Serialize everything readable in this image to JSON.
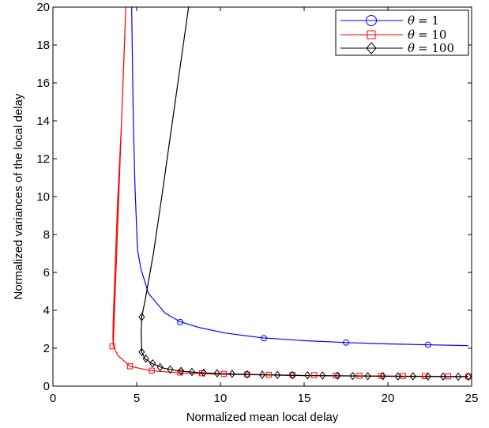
{
  "chart_data": {
    "type": "line",
    "title": "",
    "xlabel": "Normalized mean local delay",
    "ylabel": "Normalized variances of the local delay",
    "xlim": [
      0,
      25
    ],
    "ylim": [
      0,
      20
    ],
    "xticks": [
      "0",
      "5",
      "10",
      "15",
      "20",
      "25"
    ],
    "yticks": [
      "0",
      "2",
      "4",
      "6",
      "8",
      "10",
      "12",
      "14",
      "16",
      "18",
      "20"
    ],
    "grid": false,
    "legend_position": "top-right",
    "series": [
      {
        "name": "θ = 1",
        "legend_symbol": "θ",
        "legend_value": "= 1",
        "color": "#0000ff",
        "marker": "circle",
        "points": [
          [
            4.7,
            20
          ],
          [
            4.8,
            14
          ],
          [
            4.9,
            10.5
          ],
          [
            5.05,
            7.2
          ],
          [
            5.25,
            6.2
          ],
          [
            5.7,
            4.9
          ],
          [
            6.7,
            3.85
          ],
          [
            7.6,
            3.4
          ],
          [
            8.7,
            3.1
          ],
          [
            10.3,
            2.8
          ],
          [
            12.5,
            2.55
          ],
          [
            15,
            2.4
          ],
          [
            17.5,
            2.3
          ],
          [
            20,
            2.23
          ],
          [
            22.5,
            2.18
          ],
          [
            24.8,
            2.14
          ]
        ],
        "marker_points": [
          [
            7.6,
            3.38
          ],
          [
            12.6,
            2.53
          ],
          [
            17.5,
            2.3
          ],
          [
            22.4,
            2.18
          ]
        ]
      },
      {
        "name": "θ = 10",
        "legend_symbol": "θ",
        "legend_value": "= 10",
        "color": "#ff0000",
        "marker": "square",
        "points": [
          [
            3.6,
            2.1
          ],
          [
            3.58,
            2.6
          ],
          [
            3.6,
            3.5
          ],
          [
            3.7,
            6.0
          ],
          [
            3.85,
            9.5
          ],
          [
            4.1,
            14.0
          ],
          [
            4.25,
            17.5
          ],
          [
            4.35,
            20
          ],
          [
            3.6,
            2.1
          ],
          [
            3.9,
            1.6
          ],
          [
            4.6,
            1.05
          ],
          [
            5.8,
            0.82
          ],
          [
            7.5,
            0.7
          ],
          [
            10,
            0.63
          ],
          [
            15,
            0.56
          ],
          [
            20,
            0.53
          ],
          [
            24.8,
            0.51
          ]
        ],
        "marker_points": [
          [
            3.55,
            2.1
          ],
          [
            4.6,
            1.05
          ],
          [
            5.9,
            0.82
          ],
          [
            7.6,
            0.72
          ],
          [
            8.9,
            0.68
          ],
          [
            10.2,
            0.65
          ],
          [
            11.6,
            0.62
          ],
          [
            12.9,
            0.6
          ],
          [
            14.3,
            0.59
          ],
          [
            15.6,
            0.58
          ],
          [
            16.9,
            0.56
          ],
          [
            18.3,
            0.55
          ],
          [
            19.6,
            0.55
          ],
          [
            20.9,
            0.54
          ],
          [
            22.2,
            0.53
          ],
          [
            23.6,
            0.52
          ],
          [
            24.8,
            0.51
          ]
        ]
      },
      {
        "name": "θ = 100",
        "legend_symbol": "θ",
        "legend_value": "= 100",
        "color": "#000000",
        "marker": "diamond",
        "points": [
          [
            8.1,
            20
          ],
          [
            7.3,
            15
          ],
          [
            6.5,
            10
          ],
          [
            6.0,
            7.0
          ],
          [
            5.5,
            4.5
          ],
          [
            5.3,
            3.65
          ],
          [
            5.27,
            2.8
          ],
          [
            5.3,
            1.8
          ],
          [
            5.5,
            1.45
          ],
          [
            5.9,
            1.2
          ],
          [
            6.6,
            0.95
          ],
          [
            7.5,
            0.8
          ],
          [
            9,
            0.7
          ],
          [
            11,
            0.63
          ],
          [
            15,
            0.56
          ],
          [
            20,
            0.52
          ],
          [
            24.8,
            0.5
          ]
        ],
        "marker_points": [
          [
            5.3,
            3.65
          ],
          [
            5.3,
            1.8
          ],
          [
            5.55,
            1.45
          ],
          [
            5.95,
            1.2
          ],
          [
            6.4,
            1.0
          ],
          [
            7.0,
            0.88
          ],
          [
            7.65,
            0.8
          ],
          [
            8.3,
            0.75
          ],
          [
            9.0,
            0.71
          ],
          [
            9.8,
            0.68
          ],
          [
            10.7,
            0.65
          ],
          [
            11.6,
            0.62
          ],
          [
            12.5,
            0.6
          ],
          [
            13.4,
            0.59
          ],
          [
            14.3,
            0.58
          ],
          [
            15.2,
            0.57
          ],
          [
            16.1,
            0.56
          ],
          [
            17.0,
            0.55
          ],
          [
            17.9,
            0.54
          ],
          [
            18.8,
            0.53
          ],
          [
            19.7,
            0.53
          ],
          [
            20.6,
            0.52
          ],
          [
            21.5,
            0.52
          ],
          [
            22.4,
            0.51
          ],
          [
            23.3,
            0.51
          ],
          [
            24.2,
            0.5
          ],
          [
            24.8,
            0.5
          ]
        ]
      }
    ]
  }
}
